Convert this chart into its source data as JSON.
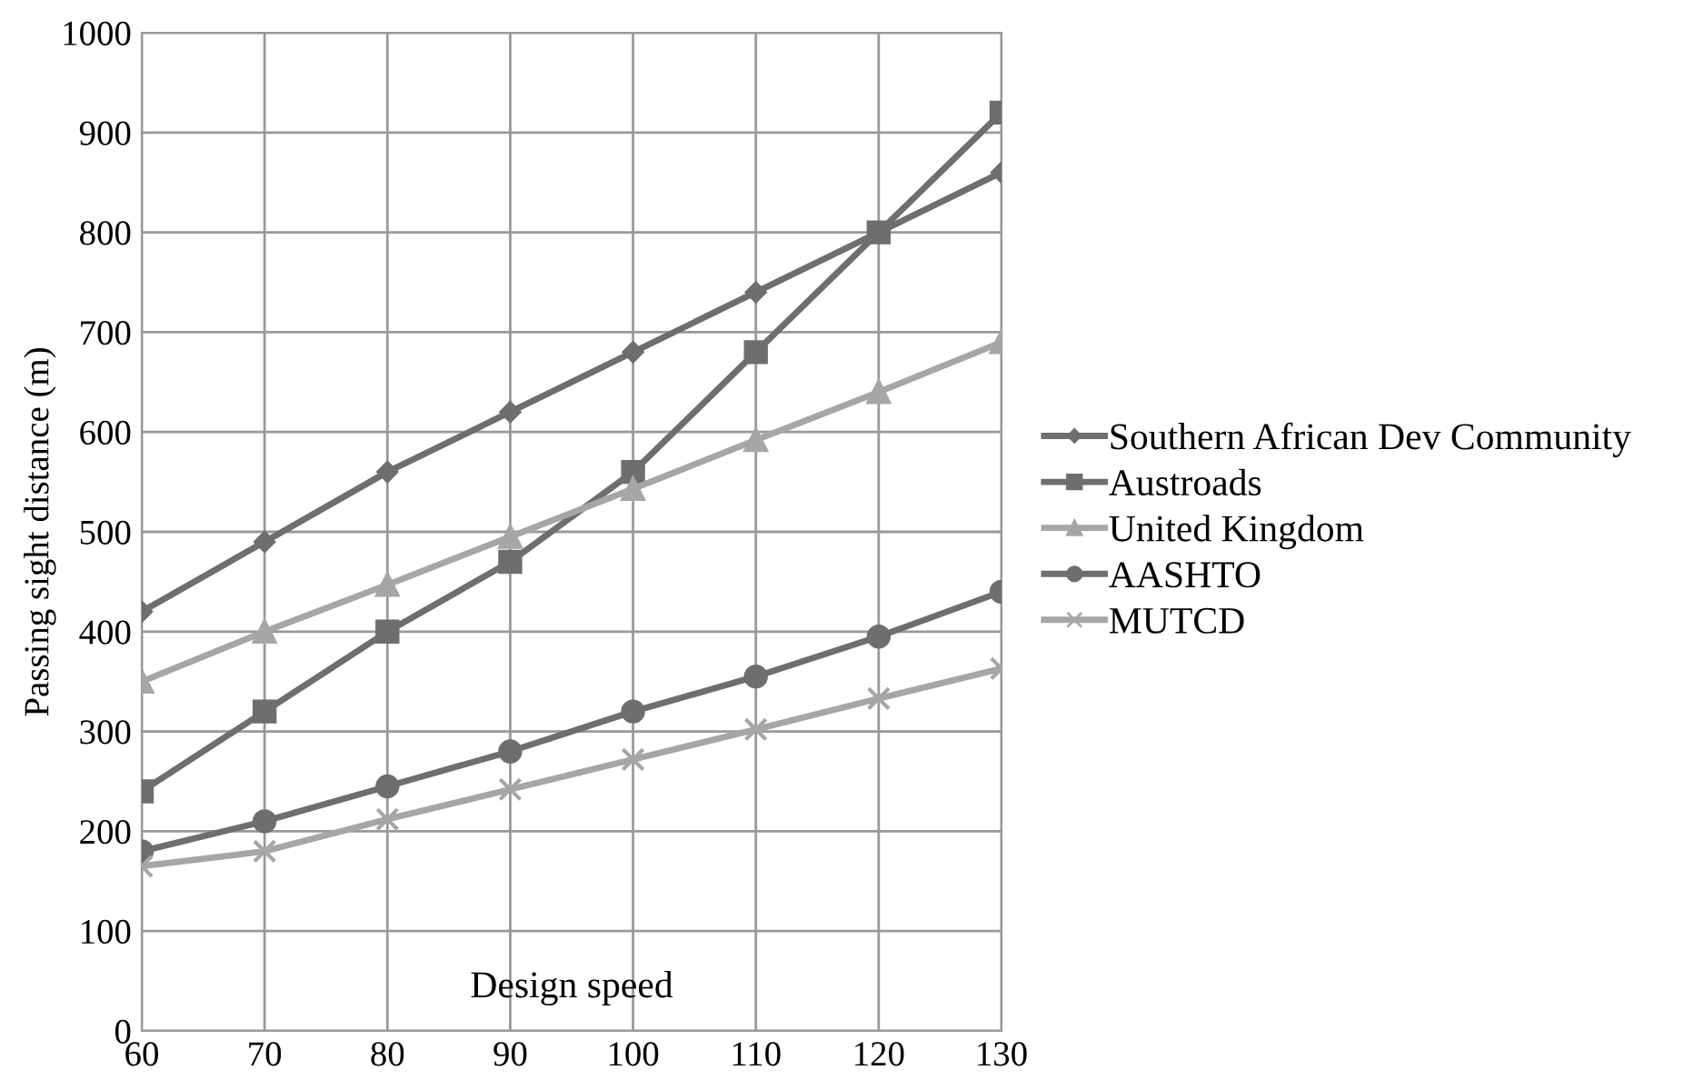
{
  "chart_data": {
    "type": "line",
    "xlabel": "Design speed",
    "ylabel": "Passing sight distance (m)",
    "x": [
      60,
      70,
      80,
      90,
      100,
      110,
      120,
      130
    ],
    "series": [
      {
        "name": "Southern African Dev Community",
        "color": "#6e6e6e",
        "marker": "diamond",
        "values": [
          420,
          490,
          560,
          620,
          680,
          740,
          800,
          860
        ]
      },
      {
        "name": "Austroads",
        "color": "#6e6e6e",
        "marker": "square",
        "values": [
          240,
          320,
          400,
          470,
          560,
          680,
          800,
          920
        ]
      },
      {
        "name": "United Kingdom",
        "color": "#a6a6a6",
        "marker": "triangle",
        "values": [
          350,
          400,
          447,
          495,
          543,
          592,
          640,
          690
        ]
      },
      {
        "name": "AASHTO",
        "color": "#6e6e6e",
        "marker": "circle",
        "values": [
          180,
          210,
          245,
          280,
          320,
          355,
          395,
          440
        ]
      },
      {
        "name": "MUTCD",
        "color": "#a6a6a6",
        "marker": "cross",
        "values": [
          165,
          180,
          212,
          242,
          272,
          302,
          333,
          363
        ]
      }
    ],
    "xlim": [
      60,
      130
    ],
    "xticks": [
      60,
      70,
      80,
      90,
      100,
      110,
      120,
      130
    ],
    "ylim": [
      0,
      1000
    ],
    "yticks": [
      0,
      100,
      200,
      300,
      400,
      500,
      600,
      700,
      800,
      900,
      1000
    ],
    "grid": true,
    "legend": "right",
    "line_style": "solid"
  }
}
